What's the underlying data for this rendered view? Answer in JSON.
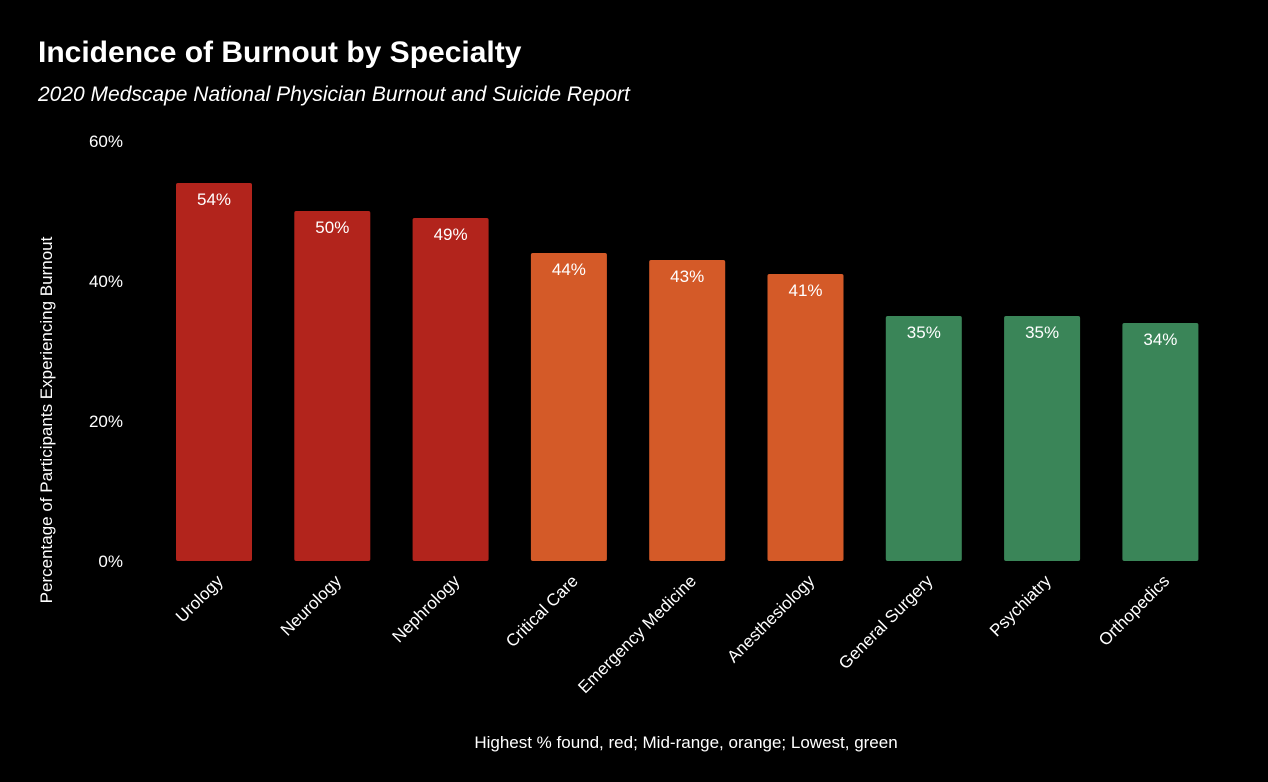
{
  "title": "Incidence of Burnout by Specialty",
  "subtitle": "2020 Medscape National Physician Burnout and Suicide Report",
  "footnote": "Highest % found, red; Mid-range, orange; Lowest, green",
  "colors": {
    "background": "#000000",
    "text": "#ffffff",
    "red": "#b2241c",
    "orange": "#d45a28",
    "green": "#3a8558"
  },
  "chart_data": {
    "type": "bar",
    "title": "Incidence of Burnout by Specialty",
    "subtitle": "2020 Medscape National Physician Burnout and Suicide Report",
    "xlabel": "",
    "ylabel": "Percentage of Participants Experiencing  Burnout",
    "ylim": [
      0,
      60
    ],
    "yticks": [
      0,
      20,
      40,
      60
    ],
    "ytick_labels": [
      "0%",
      "20%",
      "40%",
      "60%"
    ],
    "grid": false,
    "legend": "none",
    "categories": [
      "Urology",
      "Neurology",
      "Nephrology",
      "Critical Care",
      "Emergency Medicine",
      "Anesthesiology",
      "General Surgery",
      "Psychiatry",
      "Orthopedics"
    ],
    "values": [
      54,
      50,
      49,
      44,
      43,
      41,
      35,
      35,
      34
    ],
    "data_labels": [
      "54%",
      "50%",
      "49%",
      "44%",
      "43%",
      "41%",
      "35%",
      "35%",
      "34%"
    ],
    "bar_colors": [
      "#b2241c",
      "#b2241c",
      "#b2241c",
      "#d45a28",
      "#d45a28",
      "#d45a28",
      "#3a8558",
      "#3a8558",
      "#3a8558"
    ]
  }
}
